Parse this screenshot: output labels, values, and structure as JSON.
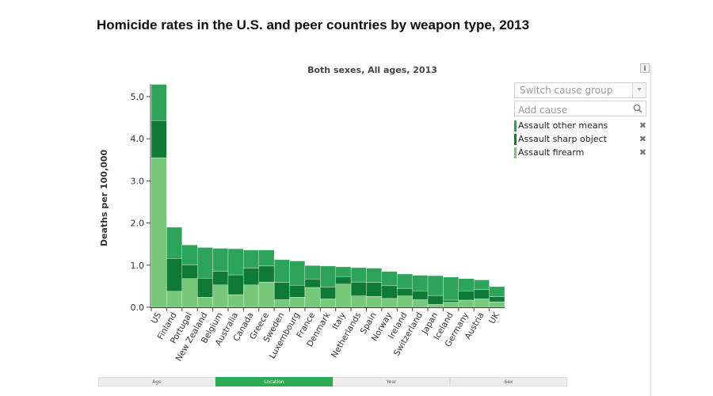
{
  "page": {
    "title": "Homicide rates in the U.S. and peer countries by weapon type, 2013"
  },
  "controls": {
    "info_icon": "info-icon",
    "switch_cause_group": "Switch cause group",
    "add_cause_placeholder": "Add cause",
    "remove_symbol": "✖"
  },
  "legend": [
    {
      "label": "Assault other means",
      "color": "#2ea35a"
    },
    {
      "label": "Assault sharp object",
      "color": "#0f7a36"
    },
    {
      "label": "Assault firearm",
      "color": "#77c878"
    }
  ],
  "tabs": [
    {
      "label": "Age",
      "active": false
    },
    {
      "label": "Location",
      "active": true
    },
    {
      "label": "Year",
      "active": false
    },
    {
      "label": "Sex",
      "active": false
    }
  ],
  "chart_data": {
    "type": "bar",
    "stacked": true,
    "title": "Both sexes, All ages, 2013",
    "xlabel": "",
    "ylabel": "Deaths per 100,000",
    "ylim": [
      0,
      5.3
    ],
    "yticks": [
      0.0,
      1.0,
      2.0,
      3.0,
      4.0,
      5.0
    ],
    "ytick_labels": [
      "0.0",
      "1.0",
      "2.0",
      "3.0",
      "4.0",
      "5.0"
    ],
    "categories": [
      "US",
      "Finland",
      "Portugal",
      "New Zealand",
      "Belgium",
      "Australia",
      "Canada",
      "Greece",
      "Sweden",
      "Luxembourg",
      "France",
      "Denmark",
      "Italy",
      "Netherlands",
      "Spain",
      "Norway",
      "Ireland",
      "Switzerland",
      "Japan",
      "Iceland",
      "Germany",
      "Austria",
      "UK"
    ],
    "series": [
      {
        "name": "Assault firearm",
        "color": "#77c878",
        "values": [
          3.55,
          0.38,
          0.68,
          0.24,
          0.53,
          0.3,
          0.53,
          0.6,
          0.18,
          0.24,
          0.47,
          0.2,
          0.55,
          0.27,
          0.26,
          0.21,
          0.27,
          0.18,
          0.07,
          0.12,
          0.17,
          0.2,
          0.13
        ]
      },
      {
        "name": "Assault sharp object",
        "color": "#0f7a36",
        "values": [
          0.88,
          0.78,
          0.32,
          0.45,
          0.32,
          0.47,
          0.4,
          0.38,
          0.41,
          0.28,
          0.2,
          0.28,
          0.18,
          0.33,
          0.33,
          0.3,
          0.18,
          0.21,
          0.21,
          0.05,
          0.22,
          0.22,
          0.12
        ]
      },
      {
        "name": "Assault other means",
        "color": "#2ea35a",
        "values": [
          0.86,
          0.74,
          0.48,
          0.73,
          0.55,
          0.62,
          0.43,
          0.38,
          0.54,
          0.58,
          0.32,
          0.5,
          0.23,
          0.34,
          0.34,
          0.34,
          0.34,
          0.37,
          0.47,
          0.55,
          0.29,
          0.23,
          0.24
        ]
      }
    ]
  }
}
